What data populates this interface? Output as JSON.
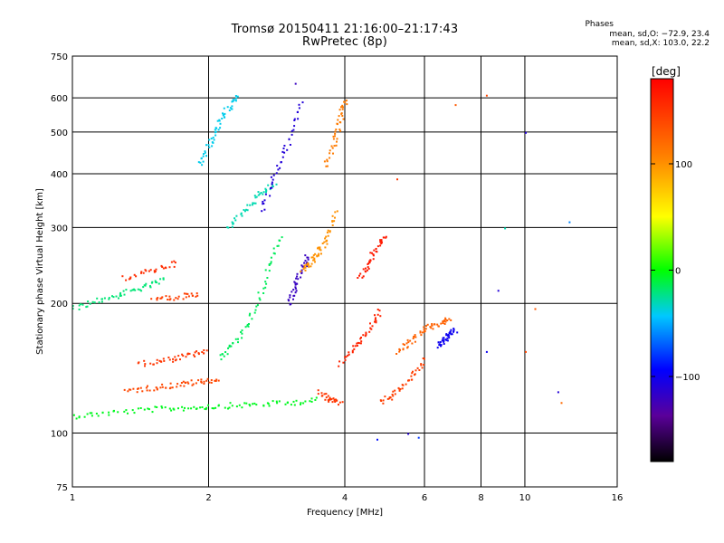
{
  "header": {
    "title_line1": "Tromsø 20150411 21:16:00–21:17:43",
    "title_line2": "RwPretec (8p)"
  },
  "legend": {
    "heading": "Phases",
    "o_line": "mean, sd,O: −72.9, 23.4",
    "x_line": "mean, sd,X: 103.0, 22.2"
  },
  "colorbar": {
    "label": "[deg]",
    "range": [
      -180,
      180
    ],
    "ticks": [
      {
        "value": 100,
        "label": "100"
      },
      {
        "value": 0,
        "label": "0"
      },
      {
        "value": -100,
        "label": "−100"
      }
    ]
  },
  "chart_data": {
    "type": "scatter",
    "title": "Tromsø 20150411 21:16:00–21:17:43 RwPretec (8p)",
    "xlabel": "Frequency [MHz]",
    "ylabel": "Stationary phase Virtual Height [km]",
    "xscale": "log",
    "yscale": "log",
    "xlim": [
      1,
      16
    ],
    "ylim": [
      75,
      750
    ],
    "grid": true,
    "x_ticks": [
      {
        "value": 1,
        "label": "1"
      },
      {
        "value": 2,
        "label": "2"
      },
      {
        "value": 4,
        "label": "4"
      },
      {
        "value": 6,
        "label": "6"
      },
      {
        "value": 8,
        "label": "8"
      },
      {
        "value": 10,
        "label": "10"
      },
      {
        "value": 16,
        "label": "16"
      }
    ],
    "y_ticks": [
      {
        "value": 75,
        "label": "75"
      },
      {
        "value": 100,
        "label": "100"
      },
      {
        "value": 200,
        "label": "200"
      },
      {
        "value": 300,
        "label": "300"
      },
      {
        "value": 400,
        "label": "400"
      },
      {
        "value": 500,
        "label": "500"
      },
      {
        "value": 600,
        "label": "600"
      },
      {
        "value": 750,
        "label": "750"
      }
    ],
    "color_variable": "phase [deg]",
    "color_range": [
      -180,
      180
    ],
    "traces": [
      {
        "f": [
          1.0,
          1.2,
          1.5,
          1.8,
          2.1,
          2.5,
          3.0,
          3.5
        ],
        "h": [
          110,
          112,
          114,
          115,
          116,
          117,
          118,
          120
        ],
        "phase": -5
      },
      {
        "f": [
          1.3,
          1.5,
          1.7,
          1.9,
          2.1
        ],
        "h": [
          126,
          128,
          130,
          132,
          134
        ],
        "phase": 140
      },
      {
        "f": [
          1.4,
          1.6,
          1.8,
          2.0
        ],
        "h": [
          145,
          148,
          152,
          156
        ],
        "phase": 150
      },
      {
        "f": [
          1.0,
          1.15,
          1.3,
          1.45,
          1.6
        ],
        "h": [
          195,
          205,
          212,
          220,
          228
        ],
        "phase": -20
      },
      {
        "f": [
          1.3,
          1.5,
          1.7
        ],
        "h": [
          230,
          240,
          250
        ],
        "phase": 155
      },
      {
        "f": [
          1.5,
          1.7,
          1.9
        ],
        "h": [
          205,
          208,
          212
        ],
        "phase": 145
      },
      {
        "f": [
          2.1,
          2.3,
          2.5,
          2.7,
          2.9
        ],
        "h": [
          150,
          165,
          190,
          240,
          290
        ],
        "phase": -15
      },
      {
        "f": [
          2.2,
          2.4,
          2.6,
          2.8
        ],
        "h": [
          300,
          330,
          360,
          380
        ],
        "phase": -30
      },
      {
        "f": [
          1.9,
          2.0,
          2.1,
          2.2,
          2.3
        ],
        "h": [
          420,
          470,
          520,
          570,
          610
        ],
        "phase": -40
      },
      {
        "f": [
          2.6,
          2.8,
          3.0,
          3.2
        ],
        "h": [
          330,
          400,
          480,
          600
        ],
        "phase": -110
      },
      {
        "f": [
          3.0,
          3.1,
          3.2,
          3.3
        ],
        "h": [
          200,
          220,
          240,
          260
        ],
        "phase": -120
      },
      {
        "f": [
          3.2,
          3.35,
          3.5,
          3.65,
          3.8
        ],
        "h": [
          240,
          250,
          265,
          285,
          330
        ],
        "phase": 100
      },
      {
        "f": [
          3.6,
          3.8,
          3.9,
          4.0
        ],
        "h": [
          420,
          480,
          540,
          600
        ],
        "phase": 110
      },
      {
        "f": [
          3.5,
          3.7,
          3.9
        ],
        "h": [
          125,
          120,
          118
        ],
        "phase": 150
      },
      {
        "f": [
          3.9,
          4.2,
          4.5,
          4.8
        ],
        "h": [
          145,
          160,
          175,
          195
        ],
        "phase": 160
      },
      {
        "f": [
          4.3,
          4.5,
          4.7,
          4.9
        ],
        "h": [
          230,
          250,
          270,
          290
        ],
        "phase": 165
      },
      {
        "f": [
          4.8,
          5.2,
          5.6,
          6.0
        ],
        "h": [
          118,
          125,
          135,
          150
        ],
        "phase": 145
      },
      {
        "f": [
          5.2,
          5.6,
          6.0,
          6.4,
          6.8
        ],
        "h": [
          155,
          165,
          175,
          180,
          185
        ],
        "phase": 125
      },
      {
        "f": [
          6.4,
          6.6,
          6.8,
          7.0
        ],
        "h": [
          160,
          165,
          170,
          175
        ],
        "phase": -100
      }
    ],
    "isolated_points": [
      {
        "f": 3.1,
        "h": 650,
        "phase": -120
      },
      {
        "f": 7.0,
        "h": 580,
        "phase": 130
      },
      {
        "f": 8.2,
        "h": 610,
        "phase": 140
      },
      {
        "f": 10.0,
        "h": 500,
        "phase": -110
      },
      {
        "f": 9.0,
        "h": 300,
        "phase": -30
      },
      {
        "f": 12.5,
        "h": 310,
        "phase": -60
      },
      {
        "f": 8.7,
        "h": 215,
        "phase": -110
      },
      {
        "f": 10.5,
        "h": 195,
        "phase": 130
      },
      {
        "f": 11.8,
        "h": 125,
        "phase": -110
      },
      {
        "f": 12.0,
        "h": 118,
        "phase": 120
      },
      {
        "f": 10.0,
        "h": 155,
        "phase": 140
      },
      {
        "f": 8.2,
        "h": 155,
        "phase": -100
      },
      {
        "f": 5.5,
        "h": 100,
        "phase": -110
      },
      {
        "f": 5.8,
        "h": 98,
        "phase": -80
      },
      {
        "f": 4.7,
        "h": 97,
        "phase": -90
      },
      {
        "f": 5.2,
        "h": 390,
        "phase": 150
      }
    ]
  }
}
